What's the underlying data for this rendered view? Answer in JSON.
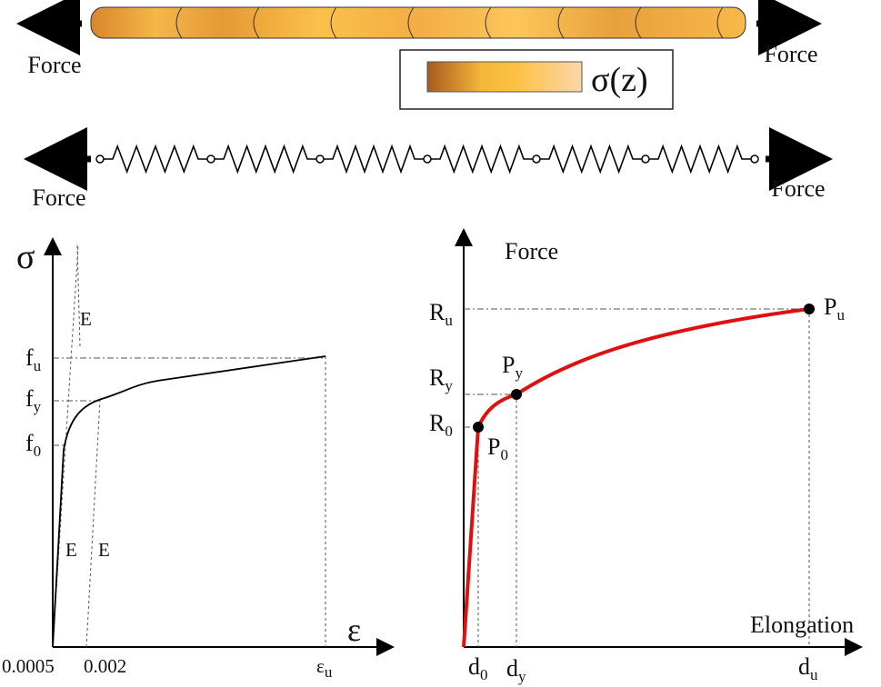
{
  "top": {
    "force_left": "Force",
    "force_right": "Force",
    "legend": "σ(z)"
  },
  "spring": {
    "force_left": "Force",
    "force_right": "Force"
  },
  "stress_strain": {
    "y_axis": "σ",
    "x_axis": "ε",
    "f_u": {
      "base": "f",
      "sub": "u"
    },
    "f_y": {
      "base": "f",
      "sub": "y"
    },
    "f_0": {
      "base": "f",
      "sub": "0"
    },
    "x_tick_1": "0.0005",
    "x_tick_2": "0.002",
    "eps_u": {
      "base": "ε",
      "sub": "u"
    },
    "e_top": "E",
    "e_left": "E",
    "e_right": "E"
  },
  "force_elongation": {
    "y_axis": "Force",
    "x_axis": "Elongation",
    "R_u": {
      "base": "R",
      "sub": "u"
    },
    "R_y": {
      "base": "R",
      "sub": "y"
    },
    "R_0": {
      "base": "R",
      "sub": "0"
    },
    "P_u": {
      "base": "P",
      "sub": "u"
    },
    "P_y": {
      "base": "P",
      "sub": "y"
    },
    "P_0": {
      "base": "P",
      "sub": "0"
    },
    "d_0": {
      "base": "d",
      "sub": "0"
    },
    "d_y": {
      "base": "d",
      "sub": "y"
    },
    "d_u": {
      "base": "d",
      "sub": "u"
    }
  }
}
